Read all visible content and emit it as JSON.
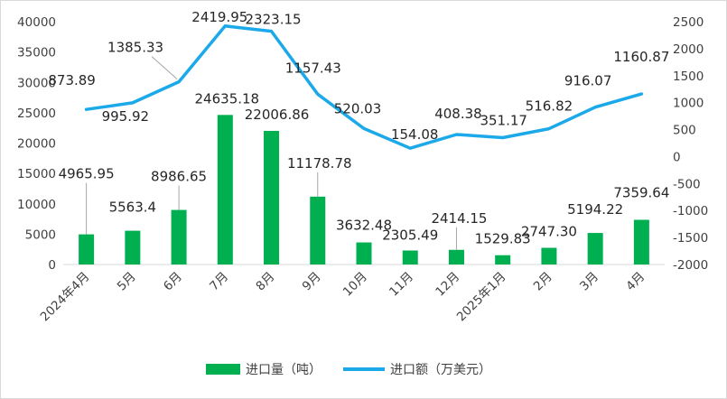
{
  "chart_data": {
    "type": "bar+line",
    "categories": [
      "2024年4月",
      "5月",
      "6月",
      "7月",
      "8月",
      "9月",
      "10月",
      "11月",
      "12月",
      "2025年1月",
      "2月",
      "3月",
      "4月"
    ],
    "series": [
      {
        "name": "进口量（吨）",
        "type": "bar",
        "axis": "left",
        "color": "#00B050",
        "values": [
          4965.95,
          5563.4,
          8986.65,
          24635.18,
          22006.86,
          11178.78,
          3632.48,
          2305.49,
          2414.15,
          1529.83,
          2747.3,
          5194.22,
          7359.64
        ],
        "labels": [
          "4965.95",
          "5563.4",
          "8986.65",
          "24635.18",
          "22006.86",
          "11178.78",
          "3632.48",
          "2305.49",
          "2414.15",
          "1529.83",
          "2747.30",
          "5194.22",
          "7359.64"
        ]
      },
      {
        "name": "进口额（万美元）",
        "type": "line",
        "axis": "right",
        "color": "#1BA9E9",
        "values": [
          873.89,
          995.92,
          1385.33,
          2419.95,
          2323.15,
          1157.43,
          520.03,
          154.08,
          408.38,
          351.17,
          516.82,
          916.07,
          1160.87
        ],
        "labels": [
          "873.89",
          "995.92",
          "1385.33",
          "2419.95",
          "2323.15",
          "1157.43",
          "520.03",
          "154.08",
          "408.38",
          "351.17",
          "516.82",
          "916.07",
          "1160.87"
        ]
      }
    ],
    "y_left": {
      "min": 0,
      "max": 40000,
      "ticks": [
        "0",
        "5000",
        "10000",
        "15000",
        "20000",
        "25000",
        "30000",
        "35000",
        "40000"
      ]
    },
    "y_right": {
      "min": -2000,
      "max": 2500,
      "ticks": [
        "-2000",
        "-1500",
        "-1000",
        "-500",
        "0",
        "500",
        "1000",
        "1500",
        "2000",
        "2500"
      ]
    },
    "grid": false,
    "legend_position": "bottom"
  }
}
